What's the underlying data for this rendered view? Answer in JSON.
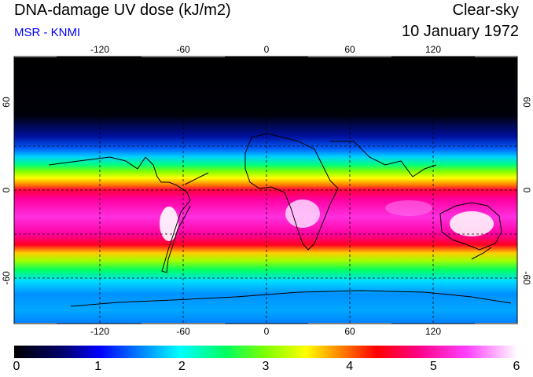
{
  "header": {
    "title": "DNA-damage UV dose (kJ/m2)",
    "source": "MSR - KNMI",
    "sky_condition": "Clear-sky",
    "date": "10 January 1972"
  },
  "colors": {
    "source_text": "#0000ff"
  },
  "map": {
    "lon_ticks": [
      "-120",
      "-60",
      "0",
      "60",
      "120"
    ],
    "lat_ticks": [
      "60",
      "0",
      "-60"
    ],
    "lon_values": [
      -120,
      -60,
      0,
      60,
      120
    ],
    "lat_values": [
      60,
      0,
      -60
    ]
  },
  "colorbar": {
    "min": 0,
    "max": 6,
    "labels": [
      "0",
      "1",
      "2",
      "3",
      "4",
      "5",
      "6"
    ]
  }
}
